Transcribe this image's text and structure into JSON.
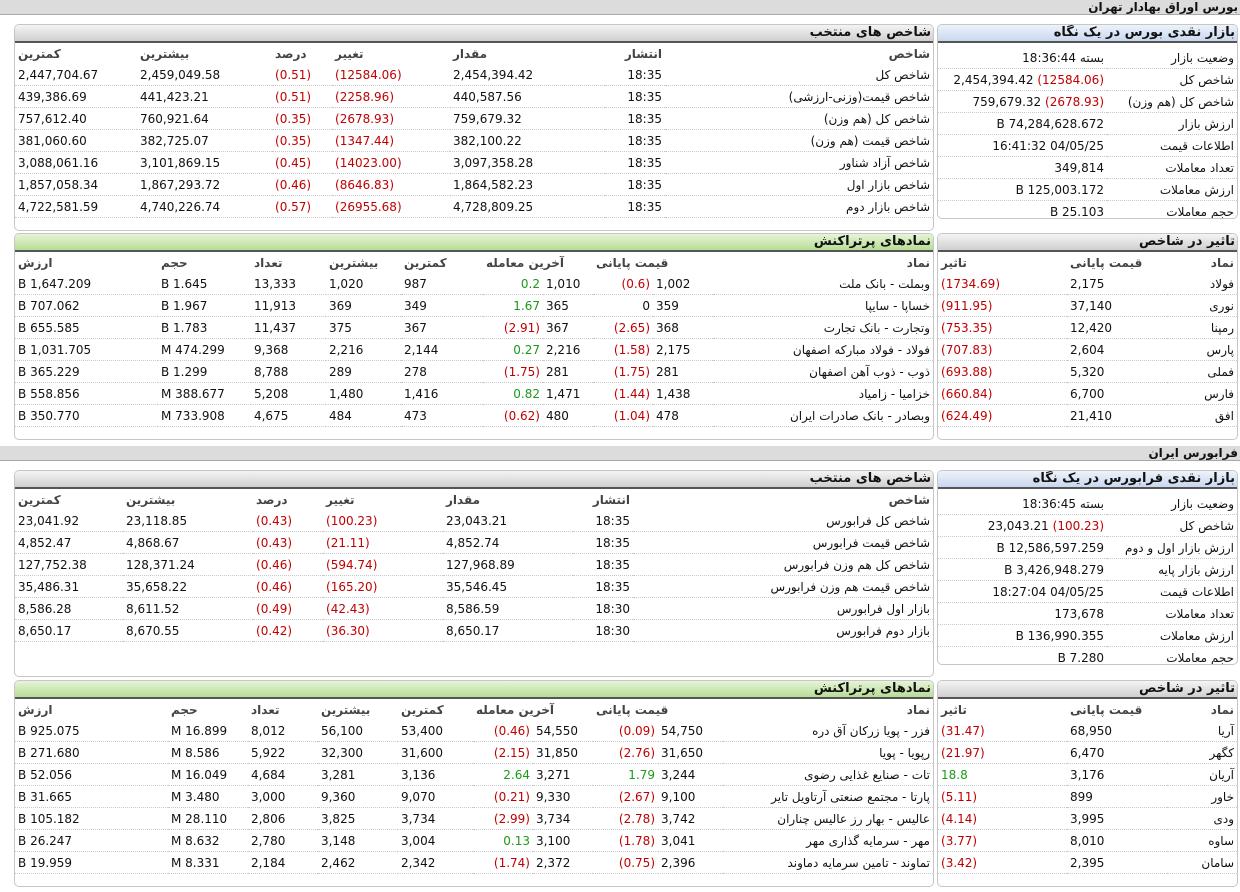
{
  "tse": {
    "title": "بورس اوراق بهادار تهران",
    "indices": {
      "title": "شاخص های منتخب",
      "headers": [
        "شاخص",
        "انتشار",
        "مقدار",
        "تغییر",
        "درصد",
        "بیشترین",
        "کمترین"
      ],
      "rows": [
        {
          "name": "شاخص کل",
          "time": "18:35",
          "value": "2,454,394.42",
          "change": "(12584.06)",
          "pct": "(0.51)",
          "high": "2,459,049.58",
          "low": "2,447,704.67"
        },
        {
          "name": "شاخص قیمت(وزنی-ارزشی)",
          "time": "18:35",
          "value": "440,587.56",
          "change": "(2258.96)",
          "pct": "(0.51)",
          "high": "441,423.21",
          "low": "439,386.69"
        },
        {
          "name": "شاخص کل (هم وزن)",
          "time": "18:35",
          "value": "759,679.32",
          "change": "(2678.93)",
          "pct": "(0.35)",
          "high": "760,921.64",
          "low": "757,612.40"
        },
        {
          "name": "شاخص قیمت (هم وزن)",
          "time": "18:35",
          "value": "382,100.22",
          "change": "(1347.44)",
          "pct": "(0.35)",
          "high": "382,725.07",
          "low": "381,060.60"
        },
        {
          "name": "شاخص آزاد شناور",
          "time": "18:35",
          "value": "3,097,358.28",
          "change": "(14023.00)",
          "pct": "(0.45)",
          "high": "3,101,869.15",
          "low": "3,088,061.16"
        },
        {
          "name": "شاخص بازار اول",
          "time": "18:35",
          "value": "1,864,582.23",
          "change": "(8646.83)",
          "pct": "(0.46)",
          "high": "1,867,293.72",
          "low": "1,857,058.34"
        },
        {
          "name": "شاخص بازار دوم",
          "time": "18:35",
          "value": "4,728,809.25",
          "change": "(26955.68)",
          "pct": "(0.57)",
          "high": "4,740,226.74",
          "low": "4,722,581.59"
        }
      ]
    },
    "glance": {
      "title": "بازار نقدی بورس در یک نگاه",
      "rows": [
        {
          "label": "وضعیت بازار",
          "value": "بسته 18:36:44",
          "change": ""
        },
        {
          "label": "شاخص کل",
          "value": "2,454,394.42",
          "change": "(12584.06)"
        },
        {
          "label": "شاخص کل (هم وزن)",
          "value": "759,679.32",
          "change": "(2678.93)"
        },
        {
          "label": "ارزش بازار",
          "value": "74,284,628.672 B",
          "change": ""
        },
        {
          "label": "اطلاعات قیمت",
          "value": "04/05/25 16:41:32",
          "change": ""
        },
        {
          "label": "تعداد معاملات",
          "value": "349,814",
          "change": ""
        },
        {
          "label": "ارزش معاملات",
          "value": "125,003.172 B",
          "change": ""
        },
        {
          "label": "حجم معاملات",
          "value": "25.103 B",
          "change": ""
        }
      ]
    },
    "active": {
      "title": "نمادهای پرتراکنش",
      "headers": [
        "نماد",
        "قیمت پایانی",
        "آخرین معامله",
        "کمترین",
        "بیشترین",
        "تعداد",
        "حجم",
        "ارزش"
      ],
      "rows": [
        {
          "sym": "وبملت - بانک ملت",
          "close": "1,002",
          "close_chg": "(0.6)",
          "last": "1,010",
          "last_chg": "0.2",
          "low": "987",
          "high": "1,020",
          "count": "13,333",
          "vol": "1.645 B",
          "val": "1,647.209 B"
        },
        {
          "sym": "خساپا - سایپا",
          "close": "359",
          "close_chg": "0",
          "last": "365",
          "last_chg": "1.67",
          "low": "349",
          "high": "369",
          "count": "11,913",
          "vol": "1.967 B",
          "val": "707.062 B"
        },
        {
          "sym": "وتجارت - بانک تجارت",
          "close": "368",
          "close_chg": "(2.65)",
          "last": "367",
          "last_chg": "(2.91)",
          "low": "367",
          "high": "375",
          "count": "11,437",
          "vol": "1.783 B",
          "val": "655.585 B"
        },
        {
          "sym": "فولاد - فولاد مبارکه اصفهان",
          "close": "2,175",
          "close_chg": "(1.58)",
          "last": "2,216",
          "last_chg": "0.27",
          "low": "2,144",
          "high": "2,216",
          "count": "9,368",
          "vol": "474.299 M",
          "val": "1,031.705 B"
        },
        {
          "sym": "ذوب - ذوب آهن اصفهان",
          "close": "281",
          "close_chg": "(1.75)",
          "last": "281",
          "last_chg": "(1.75)",
          "low": "278",
          "high": "289",
          "count": "8,788",
          "vol": "1.299 B",
          "val": "365.229 B"
        },
        {
          "sym": "خزامیا - زامیاد",
          "close": "1,438",
          "close_chg": "(1.44)",
          "last": "1,471",
          "last_chg": "0.82",
          "low": "1,416",
          "high": "1,480",
          "count": "5,208",
          "vol": "388.677 M",
          "val": "558.856 B"
        },
        {
          "sym": "وبصادر - بانک صادرات ایران",
          "close": "478",
          "close_chg": "(1.04)",
          "last": "480",
          "last_chg": "(0.62)",
          "low": "473",
          "high": "484",
          "count": "4,675",
          "vol": "733.908 M",
          "val": "350.770 B"
        }
      ]
    },
    "impact": {
      "title": "تاثیر در شاخص",
      "headers": [
        "نماد",
        "قیمت پایانی",
        "تاثیر"
      ],
      "rows": [
        {
          "sym": "فولاد",
          "close": "2,175",
          "eff": "(1734.69)"
        },
        {
          "sym": "نوری",
          "close": "37,140",
          "eff": "(911.95)"
        },
        {
          "sym": "رمپنا",
          "close": "12,420",
          "eff": "(753.35)"
        },
        {
          "sym": "پارس",
          "close": "2,604",
          "eff": "(707.83)"
        },
        {
          "sym": "فملی",
          "close": "5,320",
          "eff": "(693.88)"
        },
        {
          "sym": "فارس",
          "close": "6,700",
          "eff": "(660.84)"
        },
        {
          "sym": "افق",
          "close": "21,410",
          "eff": "(624.49)"
        }
      ]
    }
  },
  "ifb": {
    "title": "فرابورس ایران",
    "indices": {
      "title": "شاخص های منتخب",
      "headers": [
        "شاخص",
        "انتشار",
        "مقدار",
        "تغییر",
        "درصد",
        "بیشترین",
        "کمترین"
      ],
      "rows": [
        {
          "name": "شاخص کل فرابورس",
          "time": "18:35",
          "value": "23,043.21",
          "change": "(100.23)",
          "pct": "(0.43)",
          "high": "23,118.85",
          "low": "23,041.92"
        },
        {
          "name": "شاخص قیمت فرابورس",
          "time": "18:35",
          "value": "4,852.74",
          "change": "(21.11)",
          "pct": "(0.43)",
          "high": "4,868.67",
          "low": "4,852.47"
        },
        {
          "name": "شاخص کل هم وزن فرابورس",
          "time": "18:35",
          "value": "127,968.89",
          "change": "(594.74)",
          "pct": "(0.46)",
          "high": "128,371.24",
          "low": "127,752.38"
        },
        {
          "name": "شاخص قیمت هم وزن فرابورس",
          "time": "18:35",
          "value": "35,546.45",
          "change": "(165.20)",
          "pct": "(0.46)",
          "high": "35,658.22",
          "low": "35,486.31"
        },
        {
          "name": "بازار اول فرابورس",
          "time": "18:30",
          "value": "8,586.59",
          "change": "(42.43)",
          "pct": "(0.49)",
          "high": "8,611.52",
          "low": "8,586.28"
        },
        {
          "name": "بازار دوم فرابورس",
          "time": "18:30",
          "value": "8,650.17",
          "change": "(36.30)",
          "pct": "(0.42)",
          "high": "8,670.55",
          "low": "8,650.17"
        }
      ]
    },
    "glance": {
      "title": "بازار نقدی فرابورس در یک نگاه",
      "rows": [
        {
          "label": "وضعیت بازار",
          "value": "بسته 18:36:45",
          "change": ""
        },
        {
          "label": "شاخص کل",
          "value": "23,043.21",
          "change": "(100.23)"
        },
        {
          "label": "ارزش بازار اول و دوم",
          "value": "12,586,597.259 B",
          "change": ""
        },
        {
          "label": "ارزش بازار پایه",
          "value": "3,426,948.279 B",
          "change": ""
        },
        {
          "label": "اطلاعات قیمت",
          "value": "04/05/25 18:27:04",
          "change": ""
        },
        {
          "label": "تعداد معاملات",
          "value": "173,678",
          "change": ""
        },
        {
          "label": "ارزش معاملات",
          "value": "136,990.355 B",
          "change": ""
        },
        {
          "label": "حجم معاملات",
          "value": "7.280 B",
          "change": ""
        }
      ]
    },
    "active": {
      "title": "نمادهای پرتراکنش",
      "headers": [
        "نماد",
        "قیمت پایانی",
        "آخرین معامله",
        "کمترین",
        "بیشترین",
        "تعداد",
        "حجم",
        "ارزش"
      ],
      "rows": [
        {
          "sym": "فزر - پویا زرکان آق دره",
          "close": "54,750",
          "close_chg": "(0.09)",
          "last": "54,550",
          "last_chg": "(0.46)",
          "low": "53,400",
          "high": "56,100",
          "count": "8,012",
          "vol": "16.899 M",
          "val": "925.075 B"
        },
        {
          "sym": "رپویا - پویا",
          "close": "31,650",
          "close_chg": "(2.76)",
          "last": "31,850",
          "last_chg": "(2.15)",
          "low": "31,600",
          "high": "32,300",
          "count": "5,922",
          "vol": "8.586 M",
          "val": "271.680 B"
        },
        {
          "sym": "تات - صنایع غذایی رضوی",
          "close": "3,244",
          "close_chg": "1.79",
          "last": "3,271",
          "last_chg": "2.64",
          "low": "3,136",
          "high": "3,281",
          "count": "4,684",
          "vol": "16.049 M",
          "val": "52.056 B"
        },
        {
          "sym": "پارتا - مجتمع صنعتی آرتاویل تایر",
          "close": "9,100",
          "close_chg": "(2.67)",
          "last": "9,330",
          "last_chg": "(0.21)",
          "low": "9,070",
          "high": "9,360",
          "count": "3,000",
          "vol": "3.480 M",
          "val": "31.665 B"
        },
        {
          "sym": "عالیس - بهار رز عالیس چناران",
          "close": "3,742",
          "close_chg": "(2.78)",
          "last": "3,734",
          "last_chg": "(2.99)",
          "low": "3,734",
          "high": "3,825",
          "count": "2,806",
          "vol": "28.110 M",
          "val": "105.182 B"
        },
        {
          "sym": "مهر - سرمایه گذاری مهر",
          "close": "3,041",
          "close_chg": "(1.78)",
          "last": "3,100",
          "last_chg": "0.13",
          "low": "3,004",
          "high": "3,148",
          "count": "2,780",
          "vol": "8.632 M",
          "val": "26.247 B"
        },
        {
          "sym": "تماوند - تامین سرمایه دماوند",
          "close": "2,396",
          "close_chg": "(0.75)",
          "last": "2,372",
          "last_chg": "(1.74)",
          "low": "2,342",
          "high": "2,462",
          "count": "2,184",
          "vol": "8.331 M",
          "val": "19.959 B"
        }
      ]
    },
    "impact": {
      "title": "تاثیر در شاخص",
      "headers": [
        "نماد",
        "قیمت پایانی",
        "تاثیر"
      ],
      "rows": [
        {
          "sym": "آریا",
          "close": "68,950",
          "eff": "(31.47)"
        },
        {
          "sym": "کگهر",
          "close": "6,470",
          "eff": "(21.97)"
        },
        {
          "sym": "آریان",
          "close": "3,176",
          "eff": "18.8"
        },
        {
          "sym": "خاور",
          "close": "899",
          "eff": "(5.11)"
        },
        {
          "sym": "ودی",
          "close": "3,995",
          "eff": "(4.14)"
        },
        {
          "sym": "ساوه",
          "close": "8,010",
          "eff": "(3.77)"
        },
        {
          "sym": "سامان",
          "close": "2,395",
          "eff": "(3.42)"
        }
      ]
    }
  }
}
